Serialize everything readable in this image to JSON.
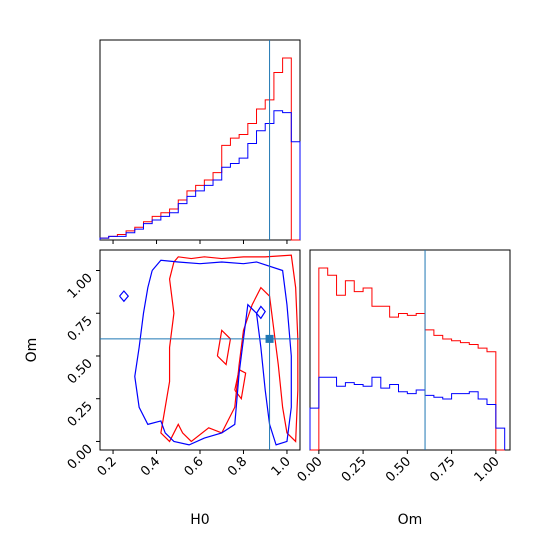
{
  "chart_data": {
    "type": "corner",
    "colors": {
      "series_a": "#ff0000",
      "series_b": "#0000ff",
      "truth": "#1f77b4"
    },
    "parameters": [
      "H0",
      "Om"
    ],
    "truth": {
      "H0": 0.92,
      "Om": 0.6
    },
    "panels": [
      {
        "id": "H0-marginal",
        "type": "histogram",
        "xlim": [
          0.14,
          1.06
        ],
        "bins": [
          0.14,
          0.18,
          0.22,
          0.26,
          0.3,
          0.34,
          0.38,
          0.42,
          0.46,
          0.5,
          0.54,
          0.58,
          0.62,
          0.66,
          0.7,
          0.74,
          0.78,
          0.82,
          0.86,
          0.9,
          0.94,
          0.98,
          1.02,
          1.06
        ],
        "series": [
          {
            "color": "red",
            "values": [
              1,
              2,
              3,
              5,
              7,
              10,
              13,
              15,
              17,
              22,
              27,
              30,
              33,
              37,
              52,
              56,
              58,
              64,
              72,
              77,
              92,
              100,
              0
            ]
          },
          {
            "color": "blue",
            "values": [
              1,
              2,
              2,
              4,
              6,
              9,
              11,
              13,
              15,
              20,
              24,
              27,
              30,
              33,
              40,
              42,
              45,
              53,
              60,
              64,
              71,
              70,
              54
            ]
          }
        ]
      },
      {
        "id": "Om-marginal",
        "type": "histogram",
        "xlim": [
          -0.05,
          1.08
        ],
        "xticks": [
          "0.00",
          "0.25",
          "0.50",
          "0.75",
          "1.00"
        ],
        "xlabel": "Om",
        "bins": [
          -0.05,
          0.0,
          0.05,
          0.1,
          0.15,
          0.2,
          0.25,
          0.3,
          0.35,
          0.4,
          0.45,
          0.5,
          0.55,
          0.6,
          0.65,
          0.7,
          0.75,
          0.8,
          0.85,
          0.9,
          0.95,
          1.0,
          1.05
        ],
        "series": [
          {
            "color": "red",
            "values": [
              0,
              100,
              96,
              85,
              93,
              87,
              89,
              79,
              79,
              73,
              75,
              74,
              75,
              66,
              63,
              61,
              60,
              59,
              58,
              56,
              54,
              0
            ]
          },
          {
            "color": "blue",
            "values": [
              23,
              40,
              40,
              35,
              37,
              36,
              35,
              40,
              34,
              36,
              32,
              31,
              33,
              30,
              29,
              28,
              31,
              31,
              32,
              28,
              25,
              12
            ]
          }
        ]
      },
      {
        "id": "H0-Om-joint",
        "type": "contour",
        "xlim": [
          0.14,
          1.06
        ],
        "ylim": [
          -0.05,
          1.12
        ],
        "xticks": [
          "0.2",
          "0.4",
          "0.6",
          "0.8",
          "1.0"
        ],
        "yticks": [
          "0.00",
          "0.25",
          "0.50",
          "0.75",
          "1.00"
        ],
        "xlabel": "H0",
        "ylabel": "Om",
        "contours": [
          {
            "color": "red",
            "points": [
              [
                0.48,
                1.05
              ],
              [
                0.5,
                1.08
              ],
              [
                0.56,
                1.07
              ],
              [
                0.62,
                1.08
              ],
              [
                0.7,
                1.07
              ],
              [
                0.8,
                1.08
              ],
              [
                0.9,
                1.08
              ],
              [
                1.02,
                1.09
              ],
              [
                1.04,
                0.9
              ],
              [
                1.05,
                0.6
              ],
              [
                1.05,
                0.3
              ],
              [
                1.04,
                0.0
              ],
              [
                1.0,
                0.05
              ],
              [
                0.98,
                0.2
              ],
              [
                0.96,
                0.45
              ],
              [
                0.94,
                0.65
              ],
              [
                0.92,
                0.85
              ],
              [
                0.88,
                0.9
              ],
              [
                0.84,
                0.8
              ],
              [
                0.8,
                0.65
              ],
              [
                0.78,
                0.45
              ],
              [
                0.76,
                0.2
              ],
              [
                0.72,
                0.1
              ],
              [
                0.7,
                0.05
              ],
              [
                0.64,
                0.08
              ],
              [
                0.56,
                0.0
              ],
              [
                0.52,
                0.05
              ],
              [
                0.5,
                0.1
              ],
              [
                0.46,
                0.0
              ],
              [
                0.42,
                0.05
              ],
              [
                0.44,
                0.2
              ],
              [
                0.46,
                0.35
              ],
              [
                0.46,
                0.55
              ],
              [
                0.48,
                0.75
              ],
              [
                0.46,
                0.95
              ],
              [
                0.48,
                1.05
              ]
            ]
          },
          {
            "color": "red",
            "points": [
              [
                0.68,
                0.5
              ],
              [
                0.72,
                0.45
              ],
              [
                0.74,
                0.6
              ],
              [
                0.7,
                0.65
              ],
              [
                0.68,
                0.5
              ]
            ]
          },
          {
            "color": "red",
            "points": [
              [
                0.76,
                0.3
              ],
              [
                0.79,
                0.25
              ],
              [
                0.81,
                0.4
              ],
              [
                0.78,
                0.42
              ],
              [
                0.76,
                0.3
              ]
            ]
          },
          {
            "color": "blue",
            "points": [
              [
                0.38,
                1.0
              ],
              [
                0.42,
                1.06
              ],
              [
                0.5,
                1.05
              ],
              [
                0.6,
                1.04
              ],
              [
                0.7,
                1.05
              ],
              [
                0.8,
                1.04
              ],
              [
                0.86,
                1.05
              ],
              [
                0.98,
                1.0
              ],
              [
                1.0,
                0.8
              ],
              [
                1.02,
                0.5
              ],
              [
                1.02,
                0.2
              ],
              [
                1.0,
                0.0
              ],
              [
                0.95,
                -0.02
              ],
              [
                0.92,
                0.1
              ],
              [
                0.9,
                0.3
              ],
              [
                0.88,
                0.55
              ],
              [
                0.86,
                0.75
              ],
              [
                0.82,
                0.8
              ],
              [
                0.8,
                0.6
              ],
              [
                0.78,
                0.4
              ],
              [
                0.76,
                0.1
              ],
              [
                0.7,
                0.05
              ],
              [
                0.62,
                0.02
              ],
              [
                0.55,
                -0.02
              ],
              [
                0.48,
                0.0
              ],
              [
                0.44,
                0.05
              ],
              [
                0.42,
                0.12
              ],
              [
                0.36,
                0.1
              ],
              [
                0.32,
                0.2
              ],
              [
                0.3,
                0.38
              ],
              [
                0.32,
                0.55
              ],
              [
                0.34,
                0.75
              ],
              [
                0.36,
                0.9
              ],
              [
                0.38,
                1.0
              ]
            ]
          },
          {
            "color": "blue",
            "points": [
              [
                0.23,
                0.85
              ],
              [
                0.25,
                0.88
              ],
              [
                0.27,
                0.85
              ],
              [
                0.25,
                0.82
              ],
              [
                0.23,
                0.85
              ]
            ]
          },
          {
            "color": "blue",
            "points": [
              [
                0.86,
                0.75
              ],
              [
                0.88,
                0.72
              ],
              [
                0.9,
                0.76
              ],
              [
                0.88,
                0.79
              ],
              [
                0.86,
                0.75
              ]
            ]
          }
        ]
      }
    ]
  }
}
